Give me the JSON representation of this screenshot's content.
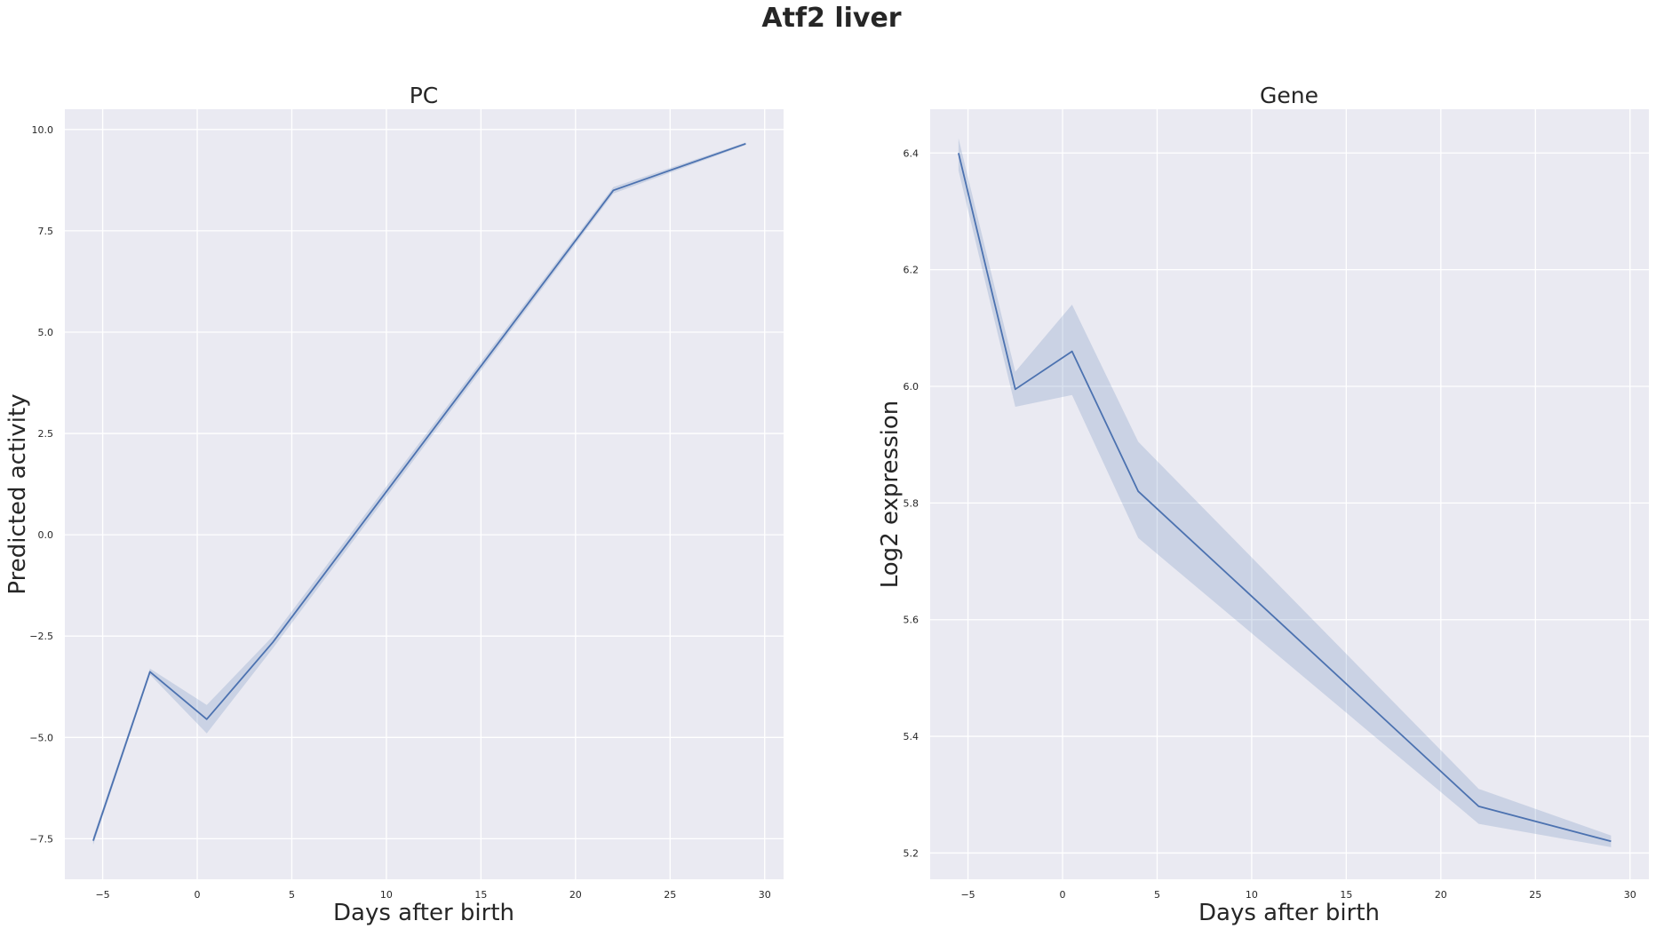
{
  "figure": {
    "title": "Atf2 liver"
  },
  "chart_data": [
    {
      "type": "line",
      "title": "PC",
      "xlabel": "Days after birth",
      "ylabel": "Predicted activity",
      "xlim": [
        -7,
        31
      ],
      "ylim": [
        -8.5,
        10.5
      ],
      "xticks": [
        -5,
        0,
        5,
        10,
        15,
        20,
        25,
        30
      ],
      "xtick_labels": [
        "−5",
        "0",
        "5",
        "10",
        "15",
        "20",
        "25",
        "30"
      ],
      "yticks": [
        -7.5,
        -5.0,
        -2.5,
        0.0,
        2.5,
        5.0,
        7.5,
        10.0
      ],
      "ytick_labels": [
        "−7.5",
        "−5.0",
        "−2.5",
        "0.0",
        "2.5",
        "5.0",
        "7.5",
        "10.0"
      ],
      "grid": true,
      "line_color": "#4c72b0",
      "band_color": "#4c72b0",
      "series": [
        {
          "x": [
            -5.5,
            -2.5,
            0.5,
            4,
            22,
            29
          ],
          "y": [
            -7.55,
            -3.38,
            -4.55,
            -2.65,
            8.5,
            9.65
          ],
          "ci_low": [
            -7.65,
            -3.45,
            -4.9,
            -2.8,
            8.42,
            9.62
          ],
          "ci_high": [
            -7.45,
            -3.3,
            -4.2,
            -2.5,
            8.58,
            9.68
          ]
        }
      ]
    },
    {
      "type": "line",
      "title": "Gene",
      "xlabel": "Days after birth",
      "ylabel": "Log2 expression",
      "xlim": [
        -7,
        31
      ],
      "ylim": [
        5.155,
        6.475
      ],
      "xticks": [
        -5,
        0,
        5,
        10,
        15,
        20,
        25,
        30
      ],
      "xtick_labels": [
        "−5",
        "0",
        "5",
        "10",
        "15",
        "20",
        "25",
        "30"
      ],
      "yticks": [
        5.2,
        5.4,
        5.6,
        5.8,
        6.0,
        6.2,
        6.4
      ],
      "ytick_labels": [
        "5.2",
        "5.4",
        "5.6",
        "5.8",
        "6.0",
        "6.2",
        "6.4"
      ],
      "grid": true,
      "line_color": "#4c72b0",
      "band_color": "#4c72b0",
      "series": [
        {
          "x": [
            -5.5,
            -2.5,
            0.5,
            4,
            22,
            29
          ],
          "y": [
            6.4,
            5.995,
            6.06,
            5.82,
            5.28,
            5.22
          ],
          "ci_low": [
            6.37,
            5.965,
            5.985,
            5.74,
            5.25,
            5.21
          ],
          "ci_high": [
            6.425,
            6.025,
            6.14,
            5.905,
            5.31,
            5.23
          ]
        }
      ]
    }
  ]
}
